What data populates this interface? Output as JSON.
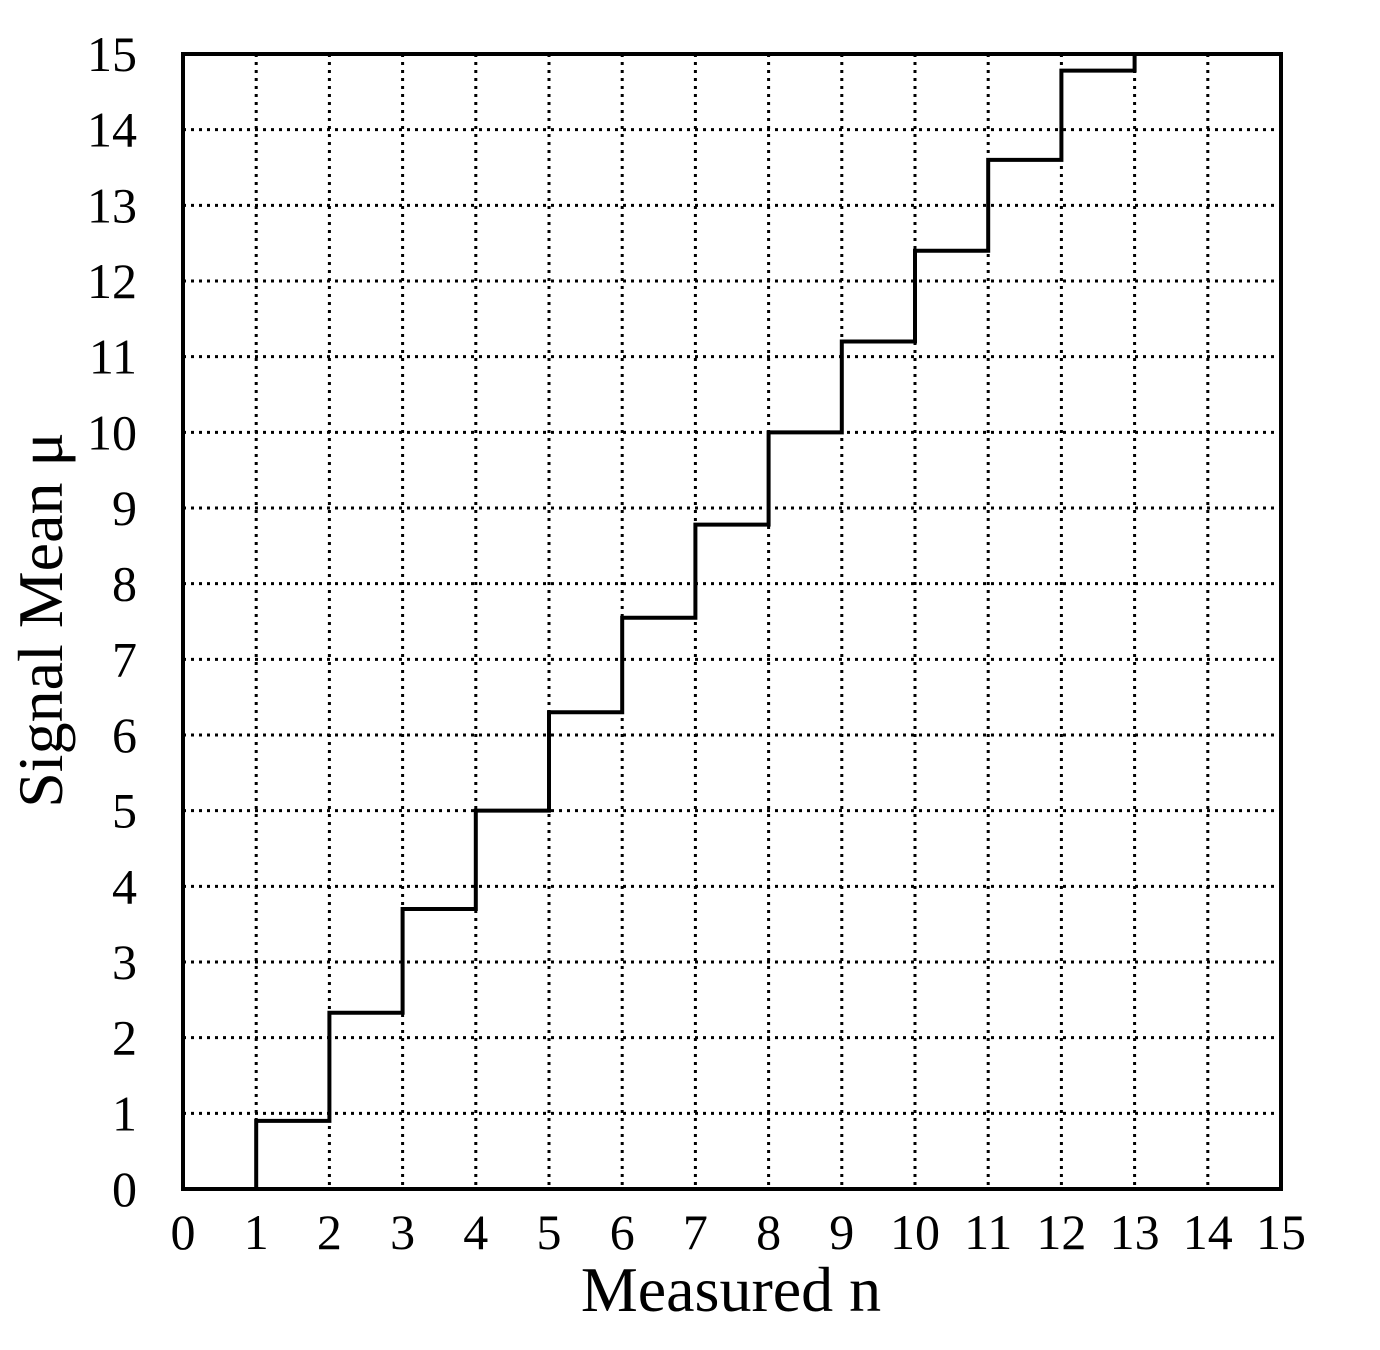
{
  "chart_data": {
    "type": "line",
    "title": "",
    "xlabel": "Measured n",
    "ylabel": "Signal Mean μ",
    "xlim": [
      0,
      15
    ],
    "ylim": [
      0,
      15
    ],
    "xticks": [
      "0",
      "1",
      "2",
      "3",
      "4",
      "5",
      "6",
      "7",
      "8",
      "9",
      "10",
      "11",
      "12",
      "13",
      "14",
      "15"
    ],
    "yticks": [
      "0",
      "1",
      "2",
      "3",
      "4",
      "5",
      "6",
      "7",
      "8",
      "9",
      "10",
      "11",
      "12",
      "13",
      "14",
      "15"
    ],
    "grid": true,
    "step_style": "steps-post",
    "series": [
      {
        "x": [
          0,
          1,
          2,
          3,
          4,
          5,
          6,
          7,
          8,
          9,
          10,
          11,
          12,
          13
        ],
        "y": [
          0,
          0.9,
          2.33,
          3.7,
          5.0,
          6.3,
          7.55,
          8.78,
          10.0,
          11.2,
          12.4,
          13.6,
          14.78,
          15.0
        ]
      }
    ]
  }
}
